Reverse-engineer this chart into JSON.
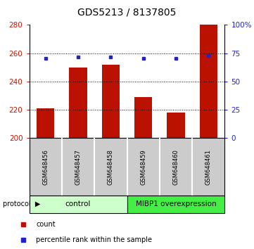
{
  "title": "GDS5213 / 8137805",
  "samples": [
    "GSM648456",
    "GSM648457",
    "GSM648458",
    "GSM648459",
    "GSM648460",
    "GSM648461"
  ],
  "counts": [
    221,
    250,
    252,
    229,
    218,
    280
  ],
  "percentile_ranks": [
    70.5,
    71.5,
    71.5,
    70.5,
    70.5,
    73.0
  ],
  "ylim_left": [
    200,
    280
  ],
  "ylim_right": [
    0,
    100
  ],
  "yticks_left": [
    200,
    220,
    240,
    260,
    280
  ],
  "yticks_right": [
    0,
    25,
    50,
    75,
    100
  ],
  "grid_values": [
    220,
    240,
    260
  ],
  "bar_color": "#bb1100",
  "dot_color": "#2222cc",
  "bar_width": 0.55,
  "control_color": "#ccffcc",
  "mibp_color": "#44ee44",
  "protocol_label": "protocol",
  "legend_count_label": "count",
  "legend_pct_label": "percentile rank within the sample",
  "xlabel_color_left": "#cc1100",
  "xlabel_color_right": "#2222cc",
  "title_fontsize": 10,
  "tick_fontsize": 7.5,
  "sample_fontsize": 6,
  "proto_fontsize": 7.5,
  "leg_fontsize": 7
}
